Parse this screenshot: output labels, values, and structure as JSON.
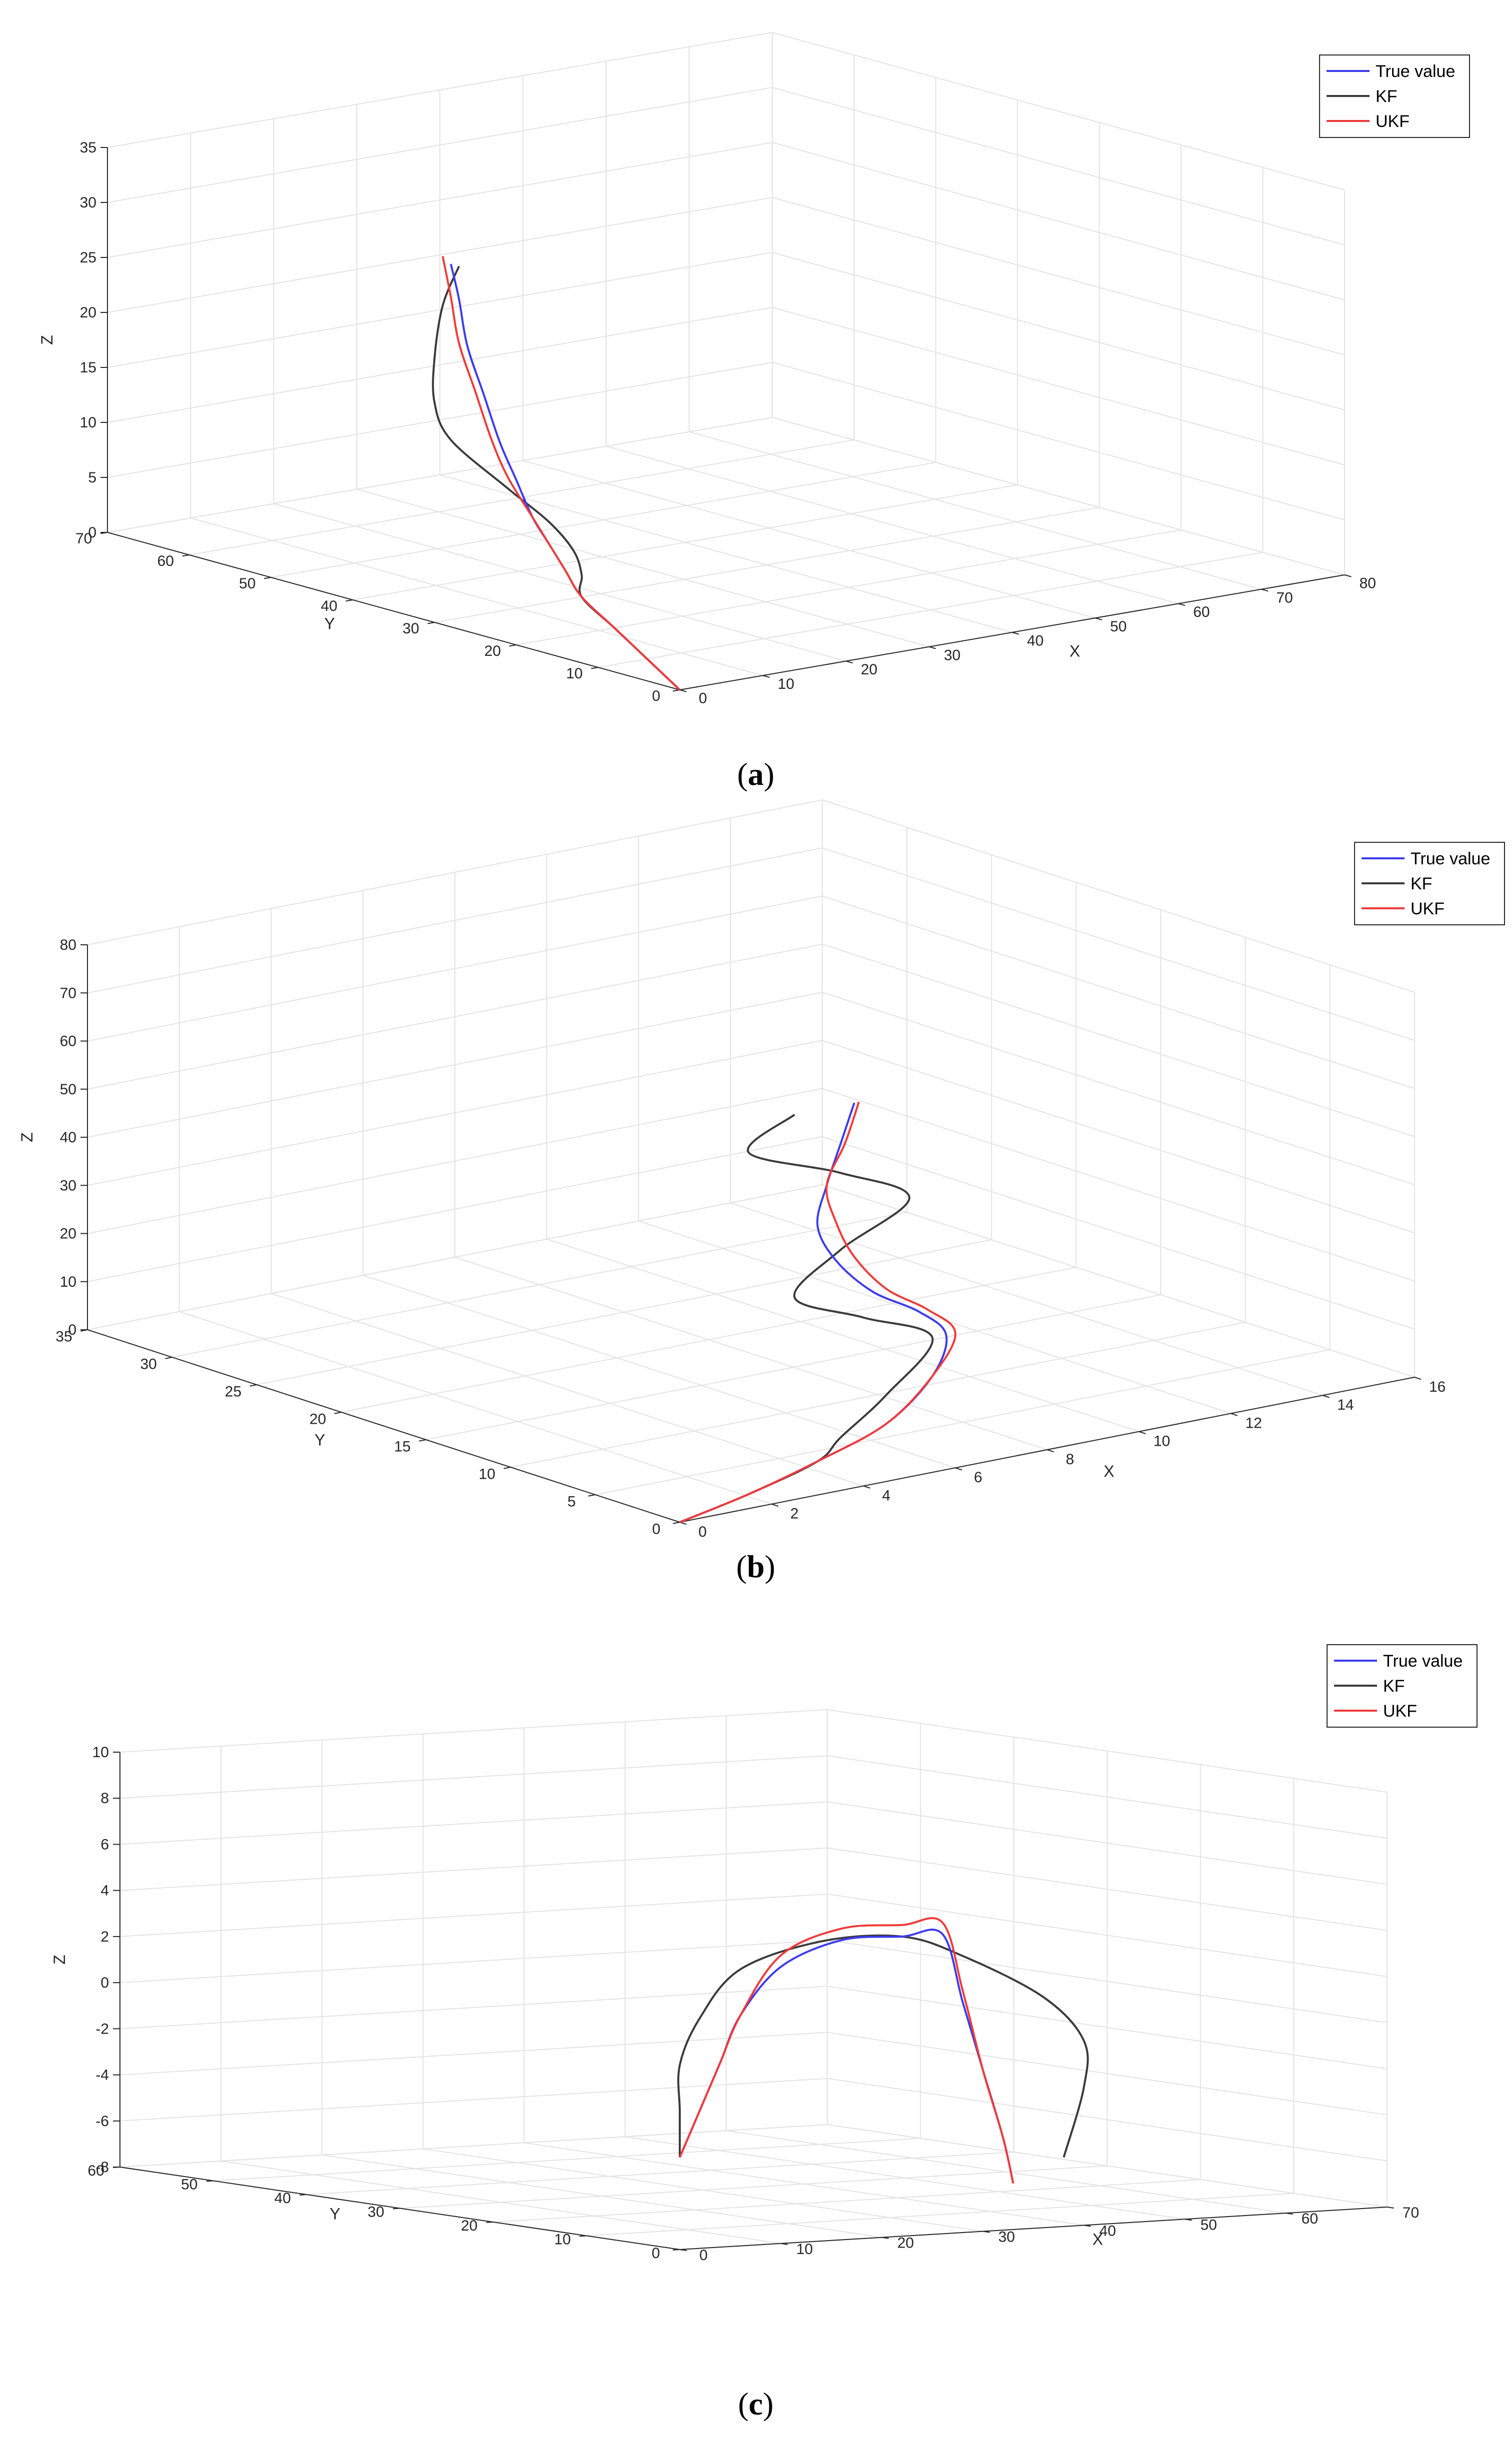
{
  "colors": {
    "true_value": "#3b3bf0",
    "kf": "#3a3a3a",
    "ukf": "#f03a3a",
    "grid": "#e3e3e3",
    "axis": "#262626"
  },
  "chart_data": [
    {
      "type": "line",
      "caption_letter": "a",
      "xlabel": "X",
      "ylabel": "Y",
      "zlabel": "Z",
      "xlim": [
        0,
        80
      ],
      "ylim": [
        0,
        70
      ],
      "zlim": [
        0,
        35
      ],
      "xticks": [
        "0",
        "10",
        "20",
        "30",
        "40",
        "50",
        "60",
        "70",
        "80"
      ],
      "yticks": [
        "0",
        "10",
        "20",
        "30",
        "40",
        "50",
        "60",
        "70"
      ],
      "zticks": [
        "0",
        "5",
        "10",
        "15",
        "20",
        "25",
        "30",
        "35"
      ],
      "grid": true,
      "legend_position": "top-right",
      "legend": [
        "True value",
        "KF",
        "UKF"
      ],
      "series": [
        {
          "name": "True value",
          "x": [
            0,
            0,
            0,
            0,
            0,
            0,
            0,
            0,
            0,
            0,
            0,
            0,
            0
          ],
          "y": [
            0,
            4,
            8,
            12,
            14,
            16,
            18,
            20,
            22,
            24,
            26,
            27,
            28
          ],
          "z": [
            0,
            2,
            4,
            6,
            8,
            10,
            12,
            15,
            18,
            22,
            26,
            30,
            33
          ]
        },
        {
          "name": "KF",
          "x": [
            0,
            0,
            0,
            0,
            0,
            0,
            0,
            0,
            0,
            0,
            0,
            0,
            0
          ],
          "y": [
            0,
            4,
            8,
            12,
            12,
            13,
            16,
            21,
            28,
            30,
            30,
            29,
            27
          ],
          "z": [
            0,
            2,
            4,
            6,
            8,
            10,
            12,
            14,
            17,
            20,
            24,
            29,
            33
          ]
        },
        {
          "name": "UKF",
          "x": [
            0,
            0,
            0,
            0,
            0,
            0,
            0,
            0,
            0,
            0,
            0,
            0,
            0
          ],
          "y": [
            0,
            4,
            8,
            12,
            14,
            16,
            18,
            21,
            23,
            25,
            27,
            28,
            29
          ],
          "z": [
            0,
            2,
            4,
            6,
            8,
            10,
            12,
            15,
            18,
            22,
            26,
            30,
            33.5
          ]
        }
      ]
    },
    {
      "type": "line",
      "caption_letter": "b",
      "xlabel": "X",
      "ylabel": "Y",
      "zlabel": "Z",
      "xlim": [
        0,
        16
      ],
      "ylim": [
        0,
        35
      ],
      "zlim": [
        0,
        80
      ],
      "xticks": [
        "0",
        "2",
        "4",
        "6",
        "8",
        "10",
        "12",
        "14",
        "16"
      ],
      "yticks": [
        "0",
        "5",
        "10",
        "15",
        "20",
        "25",
        "30",
        "35"
      ],
      "zticks": [
        "0",
        "10",
        "20",
        "30",
        "40",
        "50",
        "60",
        "70",
        "80"
      ],
      "grid": true,
      "legend_position": "top-right",
      "legend": [
        "True value",
        "KF",
        "UKF"
      ],
      "series": [
        {
          "name": "True value",
          "x": [
            0,
            1.5,
            3,
            4.5,
            5.5,
            5.8,
            5.2,
            4.2,
            3.4,
            3,
            3.2,
            3.5,
            3.8
          ],
          "y": [
            0,
            0,
            0,
            0,
            0,
            0,
            0,
            0,
            0,
            0,
            0,
            0,
            0
          ],
          "z": [
            0,
            3,
            7,
            12,
            20,
            28,
            34,
            40,
            48,
            56,
            64,
            72,
            80
          ]
        },
        {
          "name": "KF",
          "x": [
            0,
            1.5,
            3,
            3.5,
            4.5,
            5.5,
            4,
            2.5,
            3.5,
            5,
            3.5,
            1.5,
            2.5
          ],
          "y": [
            0,
            0,
            0,
            0,
            0,
            0,
            0,
            0,
            0,
            0,
            0,
            0,
            0
          ],
          "z": [
            0,
            3,
            7,
            11,
            18,
            28,
            35,
            42,
            50,
            58,
            66,
            74,
            80
          ]
        },
        {
          "name": "UKF",
          "x": [
            0,
            1.5,
            3,
            4.5,
            5.5,
            6,
            5.4,
            4.5,
            3.8,
            3.4,
            3.2,
            3.6,
            3.9
          ],
          "y": [
            0,
            0,
            0,
            0,
            0,
            0,
            0,
            0,
            0,
            0,
            0,
            0,
            0
          ],
          "z": [
            0,
            3,
            7,
            12,
            20,
            28,
            34,
            40,
            48,
            56,
            64,
            72,
            80
          ]
        }
      ]
    },
    {
      "type": "line",
      "caption_letter": "c",
      "xlabel": "X",
      "ylabel": "Y",
      "zlabel": "Z",
      "xlim": [
        0,
        70
      ],
      "ylim": [
        0,
        60
      ],
      "zlim": [
        -8,
        10
      ],
      "xticks": [
        "0",
        "10",
        "20",
        "30",
        "40",
        "50",
        "60",
        "70"
      ],
      "yticks": [
        "0",
        "10",
        "20",
        "30",
        "40",
        "50",
        "60"
      ],
      "zticks": [
        "-8",
        "-6",
        "-4",
        "-2",
        "0",
        "2",
        "4",
        "6",
        "8",
        "10"
      ],
      "grid": true,
      "legend_position": "top-right",
      "legend": [
        "True value",
        "KF",
        "UKF"
      ],
      "series": [
        {
          "name": "True value",
          "x": [
            0,
            2,
            4,
            6,
            10,
            16,
            22,
            26,
            28,
            30,
            32,
            33
          ],
          "y": [
            0,
            0,
            0,
            0,
            0,
            0,
            0,
            0,
            0,
            0,
            0,
            0
          ],
          "z": [
            -4,
            -2,
            0,
            2,
            4,
            5,
            5,
            5,
            2,
            -1,
            -4,
            -6
          ]
        },
        {
          "name": "KF",
          "x": [
            0,
            0,
            0,
            2,
            6,
            14,
            22,
            28,
            36,
            40,
            40,
            38
          ],
          "y": [
            0,
            0,
            0,
            0,
            0,
            0,
            0,
            0,
            0,
            0,
            0,
            0
          ],
          "z": [
            -4,
            -2,
            0,
            2,
            4,
            5,
            5,
            4,
            2,
            0,
            -2,
            -5
          ]
        },
        {
          "name": "UKF",
          "x": [
            0,
            2,
            4,
            6,
            10,
            16,
            22,
            26,
            28,
            30,
            32,
            33
          ],
          "y": [
            0,
            0,
            0,
            0,
            0,
            0,
            0,
            0,
            0,
            0,
            0,
            0
          ],
          "z": [
            -4,
            -2,
            0,
            2,
            4.5,
            5.5,
            5.5,
            5.5,
            2.5,
            -1,
            -4,
            -6
          ]
        }
      ]
    }
  ]
}
